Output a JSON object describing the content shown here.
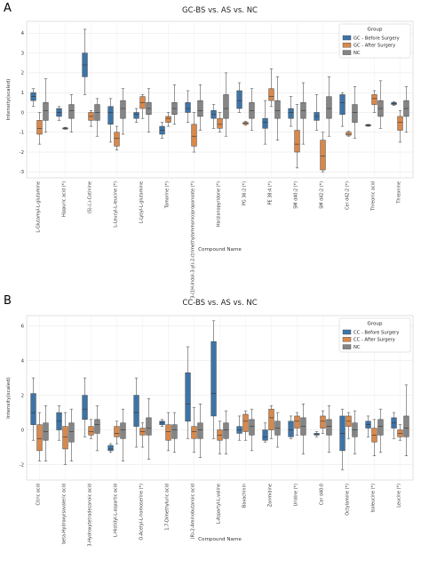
{
  "colors": {
    "before": "#3d74a8",
    "after": "#d9884a",
    "nc": "#858585"
  },
  "chart_data": [
    {
      "panel": "A",
      "type": "box",
      "title": "GC-BS vs. AS vs. NC",
      "xlabel": "Compound Name",
      "ylabel": "Intensity(scaled)",
      "ylim": [
        -3.3,
        4.6
      ],
      "yticks": [
        -3,
        -2,
        -1,
        0,
        1,
        2,
        3,
        4
      ],
      "grid": true,
      "legend": {
        "title": "Group",
        "position": "top-right",
        "entries": [
          "GC - Before Surgery",
          "GC - After Surgery",
          "NC"
        ]
      },
      "categories": [
        "L-Glutamyl-L-glutamine",
        "Hippuric acid (*)",
        "(S)-(-)-Cotinine",
        "L-Leucyl-L-leucine (*)",
        "L-Lysyl-L-glutamine",
        "Tamorine (*)",
        "3-(1H-Indol-3-yl)-2-(trimethylammonio)propanoate (*)",
        "Harzianopyridone (*)",
        "PG 36:2 (*)",
        "PE 38:4 (*)",
        "SM d40:2 (*)",
        "SM d42:2 (*)",
        "Cer d42:2 (*)",
        "Threonic acid",
        "Threonine"
      ],
      "series": [
        {
          "name": "GC - Before Surgery",
          "stats": [
            [
              0.3,
              0.6,
              0.8,
              1.0,
              1.2
            ],
            [
              -0.4,
              -0.2,
              0.0,
              0.2,
              0.3
            ],
            [
              0.9,
              1.8,
              2.4,
              3.0,
              4.2
            ],
            [
              -1.5,
              -0.6,
              0.0,
              0.3,
              0.7
            ],
            [
              -0.5,
              -0.3,
              -0.1,
              0.0,
              0.2
            ],
            [
              -1.3,
              -1.1,
              -0.9,
              -0.7,
              -0.5
            ],
            [
              -0.5,
              0.0,
              0.2,
              0.5,
              1.1
            ],
            [
              -0.8,
              -0.3,
              -0.1,
              0.1,
              0.4
            ],
            [
              0.0,
              0.2,
              0.6,
              1.1,
              1.5
            ],
            [
              -1.6,
              -0.8,
              -0.5,
              -0.3,
              0.6
            ],
            [
              -0.7,
              -0.3,
              0.0,
              0.2,
              0.8
            ],
            [
              -0.9,
              -0.4,
              -0.2,
              0.0,
              0.9
            ],
            [
              -0.7,
              -0.1,
              0.5,
              0.9,
              1.0
            ],
            [
              -0.7,
              -0.68,
              -0.65,
              -0.62,
              -0.6
            ],
            [
              0.35,
              0.4,
              0.45,
              0.5,
              0.55
            ]
          ]
        },
        {
          "name": "GC - After Surgery",
          "stats": [
            [
              -1.6,
              -1.1,
              -0.8,
              -0.4,
              0.0
            ],
            [
              -0.85,
              -0.82,
              -0.8,
              -0.78,
              -0.75
            ],
            [
              -0.7,
              -0.4,
              -0.2,
              0.0,
              0.1
            ],
            [
              -1.9,
              -1.7,
              -1.3,
              -1.0,
              -0.7
            ],
            [
              -0.3,
              0.2,
              0.5,
              0.8,
              0.9
            ],
            [
              -0.7,
              -0.5,
              -0.3,
              -0.2,
              0.0
            ],
            [
              -2.0,
              -1.7,
              -1.2,
              -0.6,
              0.0
            ],
            [
              -1.0,
              -0.8,
              -0.6,
              -0.3,
              0.0
            ],
            [
              -0.65,
              -0.6,
              -0.55,
              -0.5,
              -0.45
            ],
            [
              0.3,
              0.6,
              0.8,
              1.2,
              2.2
            ],
            [
              -2.8,
              -2.0,
              -1.6,
              -0.9,
              0.4
            ],
            [
              -3.0,
              -2.9,
              -2.2,
              -1.4,
              -1.0
            ],
            [
              -1.2,
              -1.15,
              -1.1,
              -1.0,
              -0.95
            ],
            [
              0.0,
              0.4,
              0.7,
              0.9,
              1.1
            ],
            [
              -1.5,
              -0.9,
              -0.5,
              -0.2,
              0.1
            ]
          ]
        },
        {
          "name": "NC",
          "stats": [
            [
              -1.0,
              -0.4,
              0.1,
              0.5,
              1.7
            ],
            [
              -1.0,
              -0.3,
              0.1,
              0.4,
              0.9
            ],
            [
              -1.2,
              -0.4,
              0.0,
              0.4,
              0.7
            ],
            [
              -1.1,
              -0.3,
              0.2,
              0.6,
              1.2
            ],
            [
              -1.0,
              -0.1,
              0.2,
              0.5,
              1.2
            ],
            [
              -0.6,
              -0.1,
              0.2,
              0.5,
              1.4
            ],
            [
              -0.9,
              -0.2,
              0.1,
              0.6,
              1.4
            ],
            [
              -1.2,
              -0.3,
              0.2,
              0.9,
              2.0
            ],
            [
              -0.9,
              -0.3,
              0.1,
              0.5,
              1.2
            ],
            [
              -1.4,
              -0.3,
              0.1,
              0.6,
              1.8
            ],
            [
              -1.6,
              -0.3,
              0.1,
              0.5,
              1.5
            ],
            [
              -1.2,
              -0.3,
              0.2,
              0.8,
              1.8
            ],
            [
              -1.3,
              -0.5,
              0.0,
              0.4,
              1.3
            ],
            [
              -0.8,
              -0.2,
              0.2,
              0.6,
              1.6
            ],
            [
              -1.0,
              -0.2,
              0.2,
              0.6,
              1.3
            ]
          ]
        }
      ]
    },
    {
      "panel": "B",
      "type": "box",
      "title": "CC-BS vs. AS vs. NC",
      "xlabel": "Compound Name",
      "ylabel": "Intensity(scaled)",
      "ylim": [
        -2.9,
        6.6
      ],
      "yticks": [
        -2,
        0,
        2,
        4,
        6
      ],
      "grid": true,
      "legend": {
        "title": "Group",
        "position": "top-right",
        "entries": [
          "CC - Before Surgery",
          "CC - After Surgery",
          "NC"
        ]
      },
      "categories": [
        "Citric acid",
        "beta-Hydroxyisovaleric acid",
        "3-Hydroxytetradecanoic acid",
        "L-Histidyl-L-aspartic acid",
        "O-Acetyl-L-homoserine (*)",
        "1,7-Dimethyluric acid",
        "(R)-2-Aminobutanoic acid",
        "L-Aspartyl-L-valine",
        "Bavachinin",
        "Zonmidine",
        "Uridine (*)",
        "Cer d40:0",
        "Octylamine (*)",
        "Isoleucine (*)",
        "Leucine (*)"
      ],
      "series": [
        {
          "name": "CC - Before Surgery",
          "stats": [
            [
              -0.6,
              0.3,
              1.0,
              2.1,
              3.0
            ],
            [
              -0.6,
              0.0,
              0.5,
              1.0,
              1.4
            ],
            [
              -0.4,
              0.6,
              1.2,
              2.0,
              3.0
            ],
            [
              -1.3,
              -1.2,
              -1.1,
              -0.9,
              -0.8
            ],
            [
              -1.0,
              0.2,
              1.0,
              2.0,
              3.0
            ],
            [
              0.2,
              0.3,
              0.4,
              0.5,
              0.6
            ],
            [
              -0.5,
              0.5,
              1.5,
              3.3,
              4.8
            ],
            [
              -0.5,
              0.8,
              2.1,
              5.1,
              6.3
            ],
            [
              -0.6,
              -0.2,
              0.0,
              0.2,
              0.8
            ],
            [
              -0.7,
              -0.6,
              -0.4,
              0.0,
              0.4
            ],
            [
              -0.5,
              -0.4,
              0.0,
              0.5,
              0.8
            ],
            [
              -0.4,
              -0.3,
              -0.25,
              -0.2,
              -0.1
            ],
            [
              -2.3,
              -1.2,
              -0.2,
              0.8,
              1.2
            ],
            [
              -0.4,
              0.1,
              0.3,
              0.5,
              0.8
            ],
            [
              -0.5,
              0.1,
              0.4,
              0.7,
              1.0
            ]
          ]
        },
        {
          "name": "CC - After Surgery",
          "stats": [
            [
              -1.8,
              -1.2,
              -0.5,
              0.3,
              1.0
            ],
            [
              -2.0,
              -1.1,
              -0.4,
              0.2,
              1.0
            ],
            [
              -0.5,
              -0.3,
              -0.1,
              0.2,
              0.6
            ],
            [
              -0.8,
              -0.4,
              -0.2,
              0.2,
              0.5
            ],
            [
              -1.0,
              -0.3,
              -0.1,
              0.1,
              0.4
            ],
            [
              -1.2,
              -0.6,
              -0.1,
              0.3,
              1.0
            ],
            [
              -1.3,
              -0.5,
              -0.1,
              0.2,
              1.3
            ],
            [
              -1.4,
              -0.6,
              -0.3,
              0.0,
              0.5
            ],
            [
              -0.6,
              -0.1,
              0.5,
              0.9,
              1.1
            ],
            [
              -0.5,
              0.0,
              0.7,
              1.2,
              1.4
            ],
            [
              -0.3,
              0.1,
              0.5,
              0.8,
              1.0
            ],
            [
              -0.2,
              0.1,
              0.5,
              0.8,
              1.1
            ],
            [
              -0.5,
              0.2,
              0.5,
              0.8,
              1.0
            ],
            [
              -1.5,
              -0.7,
              -0.3,
              0.1,
              0.6
            ],
            [
              -0.6,
              -0.4,
              -0.2,
              0.0,
              0.3
            ]
          ]
        },
        {
          "name": "NC",
          "stats": [
            [
              -1.8,
              -0.6,
              -0.1,
              0.4,
              1.4
            ],
            [
              -1.8,
              -0.7,
              -0.1,
              0.4,
              1.2
            ],
            [
              -1.2,
              -0.2,
              0.3,
              0.6,
              1.4
            ],
            [
              -1.8,
              -0.5,
              0.0,
              0.4,
              1.2
            ],
            [
              -1.7,
              -0.3,
              0.1,
              0.7,
              1.8
            ],
            [
              -1.3,
              -0.5,
              0.0,
              0.3,
              1.0
            ],
            [
              -1.6,
              -0.5,
              0.0,
              0.4,
              1.5
            ],
            [
              -1.4,
              -0.5,
              0.0,
              0.4,
              1.1
            ],
            [
              -1.2,
              -0.3,
              0.2,
              0.6,
              1.2
            ],
            [
              -1.0,
              -0.3,
              0.1,
              0.5,
              1.0
            ],
            [
              -1.4,
              -0.3,
              0.2,
              0.7,
              1.5
            ],
            [
              -1.3,
              -0.3,
              0.2,
              0.6,
              1.4
            ],
            [
              -1.4,
              -0.4,
              0.0,
              0.4,
              1.1
            ],
            [
              -1.3,
              -0.3,
              0.2,
              0.6,
              1.2
            ],
            [
              -1.5,
              -0.4,
              0.1,
              0.8,
              2.6
            ]
          ]
        }
      ]
    }
  ]
}
